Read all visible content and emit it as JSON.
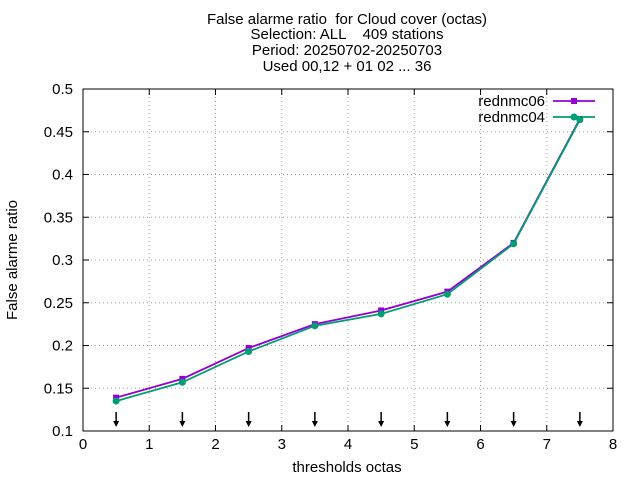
{
  "chart_data": {
    "type": "line",
    "title_lines": [
      "False alarme ratio  for Cloud cover (octas)",
      "Selection: ALL    409 stations",
      "Period: 20250702-20250703",
      "Used 00,12 + 01 02 ... 36"
    ],
    "xlabel": "thresholds octas",
    "ylabel": "False alarme ratio",
    "xlim": [
      0,
      8
    ],
    "ylim": [
      0.1,
      0.5
    ],
    "x_ticks": [
      "0",
      "1",
      "2",
      "3",
      "4",
      "5",
      "6",
      "7",
      "8"
    ],
    "y_ticks": [
      "0.1",
      "0.15",
      "0.2",
      "0.25",
      "0.3",
      "0.35",
      "0.4",
      "0.45",
      "0.5"
    ],
    "grid": true,
    "legend_position": "top-right",
    "x": [
      0.5,
      1.5,
      2.5,
      3.5,
      4.5,
      5.5,
      6.5,
      7.5
    ],
    "series": [
      {
        "name": "rednmc06",
        "color": "#9400d3",
        "marker": "filled-square",
        "values": [
          0.139,
          0.161,
          0.197,
          0.225,
          0.241,
          0.263,
          0.32,
          0.465
        ]
      },
      {
        "name": "rednmc04",
        "color": "#009e73",
        "marker": "filled-circle",
        "values": [
          0.135,
          0.157,
          0.193,
          0.223,
          0.237,
          0.26,
          0.319,
          0.464
        ]
      }
    ],
    "arrow_markers_x": [
      0.5,
      1.5,
      2.5,
      3.5,
      4.5,
      5.5,
      6.5,
      7.5
    ]
  }
}
